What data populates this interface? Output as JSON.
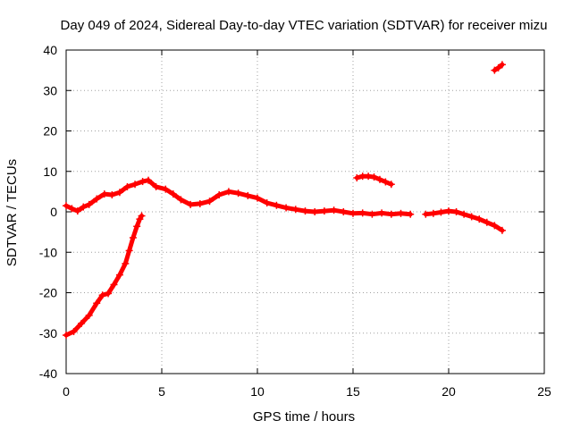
{
  "chart_data": {
    "type": "scatter",
    "title": "Day 049 of 2024, Sidereal Day-to-day VTEC variation (SDTVAR) for receiver mizu",
    "xlabel": "GPS time / hours",
    "ylabel": "SDTVAR / TECUs",
    "xlim": [
      0,
      25
    ],
    "ylim": [
      -40,
      40
    ],
    "xticks": [
      0,
      5,
      10,
      15,
      20,
      25
    ],
    "yticks": [
      -40,
      -30,
      -20,
      -10,
      0,
      10,
      20,
      30,
      40
    ],
    "grid": true,
    "legend": "none",
    "series_color": "#ff0000",
    "series": [
      {
        "name": "main",
        "points": [
          [
            0,
            1.5
          ],
          [
            0.3,
            0.8
          ],
          [
            0.6,
            0.2
          ],
          [
            0.9,
            1.2
          ],
          [
            1.2,
            1.8
          ],
          [
            1.6,
            3.2
          ],
          [
            2.0,
            4.4
          ],
          [
            2.4,
            4.2
          ],
          [
            2.8,
            4.8
          ],
          [
            3.2,
            6.2
          ],
          [
            3.6,
            6.8
          ],
          [
            4.0,
            7.5
          ],
          [
            4.3,
            7.8
          ],
          [
            4.7,
            6.2
          ],
          [
            5.2,
            5.6
          ],
          [
            5.6,
            4.4
          ],
          [
            6.0,
            3.0
          ],
          [
            6.5,
            1.8
          ],
          [
            7.0,
            2.0
          ],
          [
            7.5,
            2.6
          ],
          [
            8.0,
            4.2
          ],
          [
            8.5,
            5.0
          ],
          [
            9.0,
            4.6
          ],
          [
            9.5,
            4.0
          ],
          [
            10.0,
            3.4
          ],
          [
            10.5,
            2.2
          ],
          [
            11.0,
            1.6
          ],
          [
            11.5,
            1.0
          ],
          [
            12.0,
            0.6
          ],
          [
            12.5,
            0.2
          ],
          [
            13.0,
            0.0
          ],
          [
            13.5,
            0.2
          ],
          [
            14.0,
            0.4
          ],
          [
            14.5,
            0.0
          ],
          [
            15.0,
            -0.4
          ],
          [
            15.5,
            -0.3
          ],
          [
            16.0,
            -0.6
          ],
          [
            16.5,
            -0.3
          ],
          [
            17.0,
            -0.6
          ],
          [
            17.5,
            -0.4
          ],
          [
            18.0,
            -0.6
          ]
        ]
      },
      {
        "name": "main-2",
        "points": [
          [
            18.8,
            -0.6
          ],
          [
            19.2,
            -0.4
          ],
          [
            19.6,
            -0.1
          ],
          [
            20.0,
            0.2
          ],
          [
            20.4,
            0.0
          ],
          [
            20.8,
            -0.6
          ],
          [
            21.2,
            -1.2
          ],
          [
            21.6,
            -1.8
          ],
          [
            22.0,
            -2.6
          ],
          [
            22.4,
            -3.4
          ],
          [
            22.8,
            -4.6
          ]
        ]
      },
      {
        "name": "rising-arc",
        "points": [
          [
            0,
            -30.5
          ],
          [
            0.4,
            -29.6
          ],
          [
            0.8,
            -27.6
          ],
          [
            1.2,
            -25.6
          ],
          [
            1.6,
            -22.6
          ],
          [
            1.9,
            -20.6
          ],
          [
            2.2,
            -20.2
          ],
          [
            2.5,
            -18.0
          ],
          [
            2.8,
            -15.6
          ],
          [
            3.1,
            -12.8
          ],
          [
            3.3,
            -9.6
          ],
          [
            3.5,
            -6.4
          ],
          [
            3.7,
            -3.6
          ],
          [
            3.85,
            -1.8
          ],
          [
            3.95,
            -1.0
          ]
        ]
      },
      {
        "name": "arc-15h",
        "points": [
          [
            15.2,
            8.4
          ],
          [
            15.5,
            8.8
          ],
          [
            15.8,
            8.8
          ],
          [
            16.1,
            8.6
          ],
          [
            16.4,
            8.0
          ],
          [
            16.7,
            7.4
          ],
          [
            17.0,
            6.8
          ]
        ]
      },
      {
        "name": "segment-22h",
        "points": [
          [
            22.4,
            35.0
          ],
          [
            22.6,
            35.6
          ],
          [
            22.8,
            36.4
          ]
        ]
      }
    ]
  }
}
